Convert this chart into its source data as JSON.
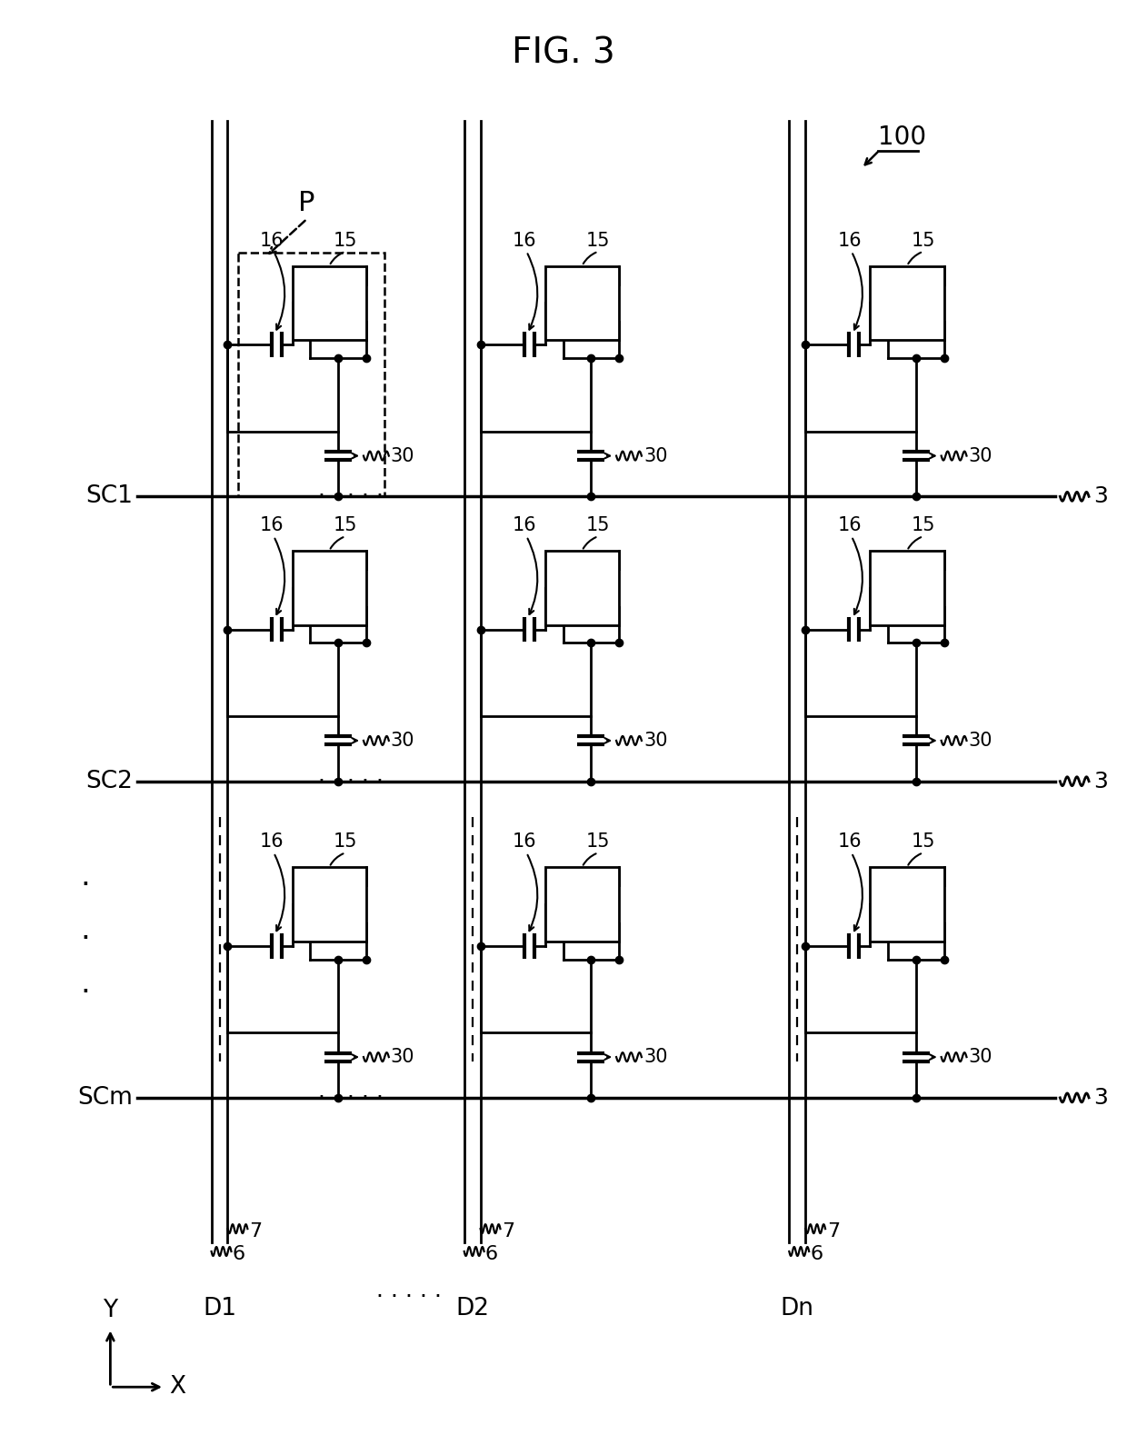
{
  "title": "FIG. 3",
  "label_100": "100",
  "label_P": "P",
  "label_SC": [
    "SC1",
    "SC2",
    "SCm"
  ],
  "label_D": [
    "D1",
    "D2",
    "Dn"
  ],
  "label_15": "15",
  "label_16": "16",
  "label_30": "30",
  "label_3": "3",
  "label_6": "6",
  "label_7": "7",
  "label_X": "X",
  "label_Y": "Y",
  "bg_color": "#ffffff",
  "line_color": "#000000",
  "cols": [
    230,
    510,
    870
  ],
  "rows": [
    545,
    860,
    1210
  ],
  "fig_width": 12.4,
  "fig_height": 16.01,
  "dpi": 100
}
